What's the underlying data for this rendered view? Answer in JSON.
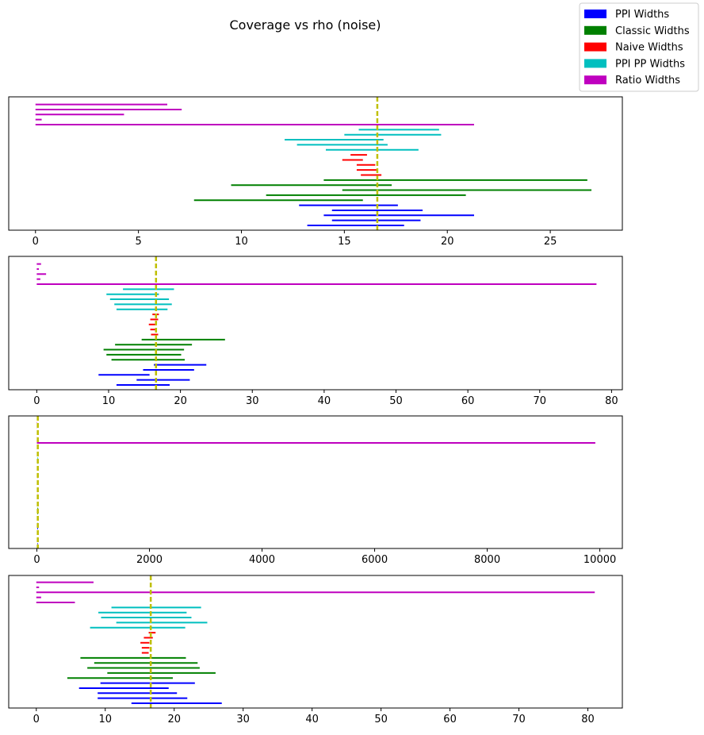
{
  "chart_data": {
    "title": "Coverage vs rho (noise)",
    "type": "interval",
    "legend": {
      "placement": "top-right",
      "entries": [
        {
          "label": "PPI Widths",
          "color": "#0000ff"
        },
        {
          "label": "Classic Widths",
          "color": "#008000"
        },
        {
          "label": "Naive Widths",
          "color": "#ff0000"
        },
        {
          "label": "PPI PP Widths",
          "color": "#00bfbf"
        },
        {
          "label": "Ratio Widths",
          "color": "#bf00bf"
        }
      ]
    },
    "reference_line": {
      "color": "#bfbf00",
      "style": "dashed"
    },
    "panels": [
      {
        "xlim": [
          -1.3,
          28.5
        ],
        "xticks": [
          0,
          5,
          10,
          15,
          20,
          25
        ],
        "ref": 16.6,
        "series": [
          {
            "name": "PPI Widths",
            "intervals": [
              [
                13.2,
                17.9
              ],
              [
                14.4,
                18.7
              ],
              [
                14.0,
                21.3
              ],
              [
                14.4,
                18.8
              ],
              [
                12.8,
                17.6
              ]
            ]
          },
          {
            "name": "Classic Widths",
            "intervals": [
              [
                7.7,
                15.9
              ],
              [
                11.2,
                20.9
              ],
              [
                14.9,
                27.0
              ],
              [
                9.5,
                17.3
              ],
              [
                14.0,
                26.8
              ]
            ]
          },
          {
            "name": "Naive Widths",
            "intervals": [
              [
                15.8,
                16.8
              ],
              [
                15.6,
                16.6
              ],
              [
                15.6,
                16.5
              ],
              [
                14.9,
                15.9
              ],
              [
                15.3,
                16.1
              ]
            ]
          },
          {
            "name": "PPI PP Widths",
            "intervals": [
              [
                14.1,
                18.6
              ],
              [
                12.7,
                17.1
              ],
              [
                12.1,
                16.9
              ],
              [
                15.0,
                19.7
              ],
              [
                15.7,
                19.6
              ]
            ]
          },
          {
            "name": "Ratio Widths",
            "intervals": [
              [
                0,
                21.3
              ],
              [
                0,
                0.3
              ],
              [
                0,
                4.3
              ],
              [
                0,
                7.1
              ],
              [
                0,
                6.4
              ]
            ]
          }
        ]
      },
      {
        "xlim": [
          -3.9,
          81.5
        ],
        "xticks": [
          0,
          10,
          20,
          30,
          40,
          50,
          60,
          70,
          80
        ],
        "ref": 16.6,
        "series": [
          {
            "name": "PPI Widths",
            "intervals": [
              [
                11.1,
                18.5
              ],
              [
                13.9,
                21.3
              ],
              [
                8.6,
                15.7
              ],
              [
                14.8,
                21.9
              ],
              [
                16.3,
                23.6
              ]
            ]
          },
          {
            "name": "Classic Widths",
            "intervals": [
              [
                10.4,
                20.6
              ],
              [
                9.7,
                20.1
              ],
              [
                9.3,
                20.5
              ],
              [
                10.9,
                21.6
              ],
              [
                14.6,
                26.2
              ]
            ]
          },
          {
            "name": "Naive Widths",
            "intervals": [
              [
                15.9,
                16.9
              ],
              [
                15.8,
                16.7
              ],
              [
                15.6,
                16.5
              ],
              [
                15.8,
                16.9
              ],
              [
                16.1,
                17.0
              ]
            ]
          },
          {
            "name": "PPI PP Widths",
            "intervals": [
              [
                11.1,
                18.2
              ],
              [
                10.8,
                18.8
              ],
              [
                10.2,
                18.4
              ],
              [
                9.7,
                17.0
              ],
              [
                12.0,
                19.1
              ]
            ]
          },
          {
            "name": "Ratio Widths",
            "intervals": [
              [
                0,
                77.9
              ],
              [
                0,
                0.5
              ],
              [
                0,
                1.3
              ],
              [
                0,
                0.3
              ],
              [
                0,
                0.6
              ]
            ]
          }
        ]
      },
      {
        "xlim": [
          -500,
          10400
        ],
        "xticks": [
          0,
          2000,
          4000,
          6000,
          8000,
          10000
        ],
        "ref": 16.6,
        "series": [
          {
            "name": "PPI Widths",
            "intervals": [
              [
                12,
                20
              ],
              [
                10,
                22
              ],
              [
                14,
                22
              ],
              [
                9,
                21
              ],
              [
                11,
                19
              ]
            ]
          },
          {
            "name": "Classic Widths",
            "intervals": [
              [
                10,
                22
              ],
              [
                9,
                21
              ],
              [
                11,
                23
              ],
              [
                8,
                24
              ],
              [
                12,
                25
              ]
            ]
          },
          {
            "name": "Naive Widths",
            "intervals": [
              [
                15,
                17
              ],
              [
                15,
                17
              ],
              [
                16,
                18
              ],
              [
                15,
                17
              ],
              [
                16,
                17
              ]
            ]
          },
          {
            "name": "PPI PP Widths",
            "intervals": [
              [
                10,
                20
              ],
              [
                11,
                21
              ],
              [
                12,
                22
              ],
              [
                9,
                19
              ],
              [
                13,
                23
              ]
            ]
          },
          {
            "name": "Ratio Widths",
            "intervals": [
              [
                0,
                9920
              ],
              [
                0,
                5
              ],
              [
                0,
                8
              ],
              [
                0,
                3
              ],
              [
                0,
                6
              ]
            ]
          }
        ]
      },
      {
        "xlim": [
          -4.0,
          85.0
        ],
        "xticks": [
          0,
          10,
          20,
          30,
          40,
          50,
          60,
          70,
          80
        ],
        "ref": 16.6,
        "series": [
          {
            "name": "PPI Widths",
            "intervals": [
              [
                13.8,
                26.9
              ],
              [
                8.9,
                21.9
              ],
              [
                8.9,
                20.4
              ],
              [
                6.2,
                19.2
              ],
              [
                9.3,
                23.0
              ]
            ]
          },
          {
            "name": "Classic Widths",
            "intervals": [
              [
                4.5,
                19.8
              ],
              [
                10.3,
                26.0
              ],
              [
                7.4,
                23.7
              ],
              [
                8.4,
                23.4
              ],
              [
                6.4,
                21.7
              ]
            ]
          },
          {
            "name": "Naive Widths",
            "intervals": [
              [
                15.3,
                16.3
              ],
              [
                15.3,
                16.4
              ],
              [
                15.1,
                16.4
              ],
              [
                15.6,
                16.9
              ],
              [
                16.3,
                17.3
              ]
            ]
          },
          {
            "name": "PPI PP Widths",
            "intervals": [
              [
                7.8,
                21.6
              ],
              [
                11.6,
                24.8
              ],
              [
                9.4,
                22.5
              ],
              [
                9.0,
                21.8
              ],
              [
                10.9,
                23.9
              ]
            ]
          },
          {
            "name": "Ratio Widths",
            "intervals": [
              [
                0,
                5.6
              ],
              [
                0,
                0.7
              ],
              [
                0,
                81.0
              ],
              [
                0,
                0.4
              ],
              [
                0,
                8.3
              ]
            ]
          }
        ]
      }
    ]
  }
}
